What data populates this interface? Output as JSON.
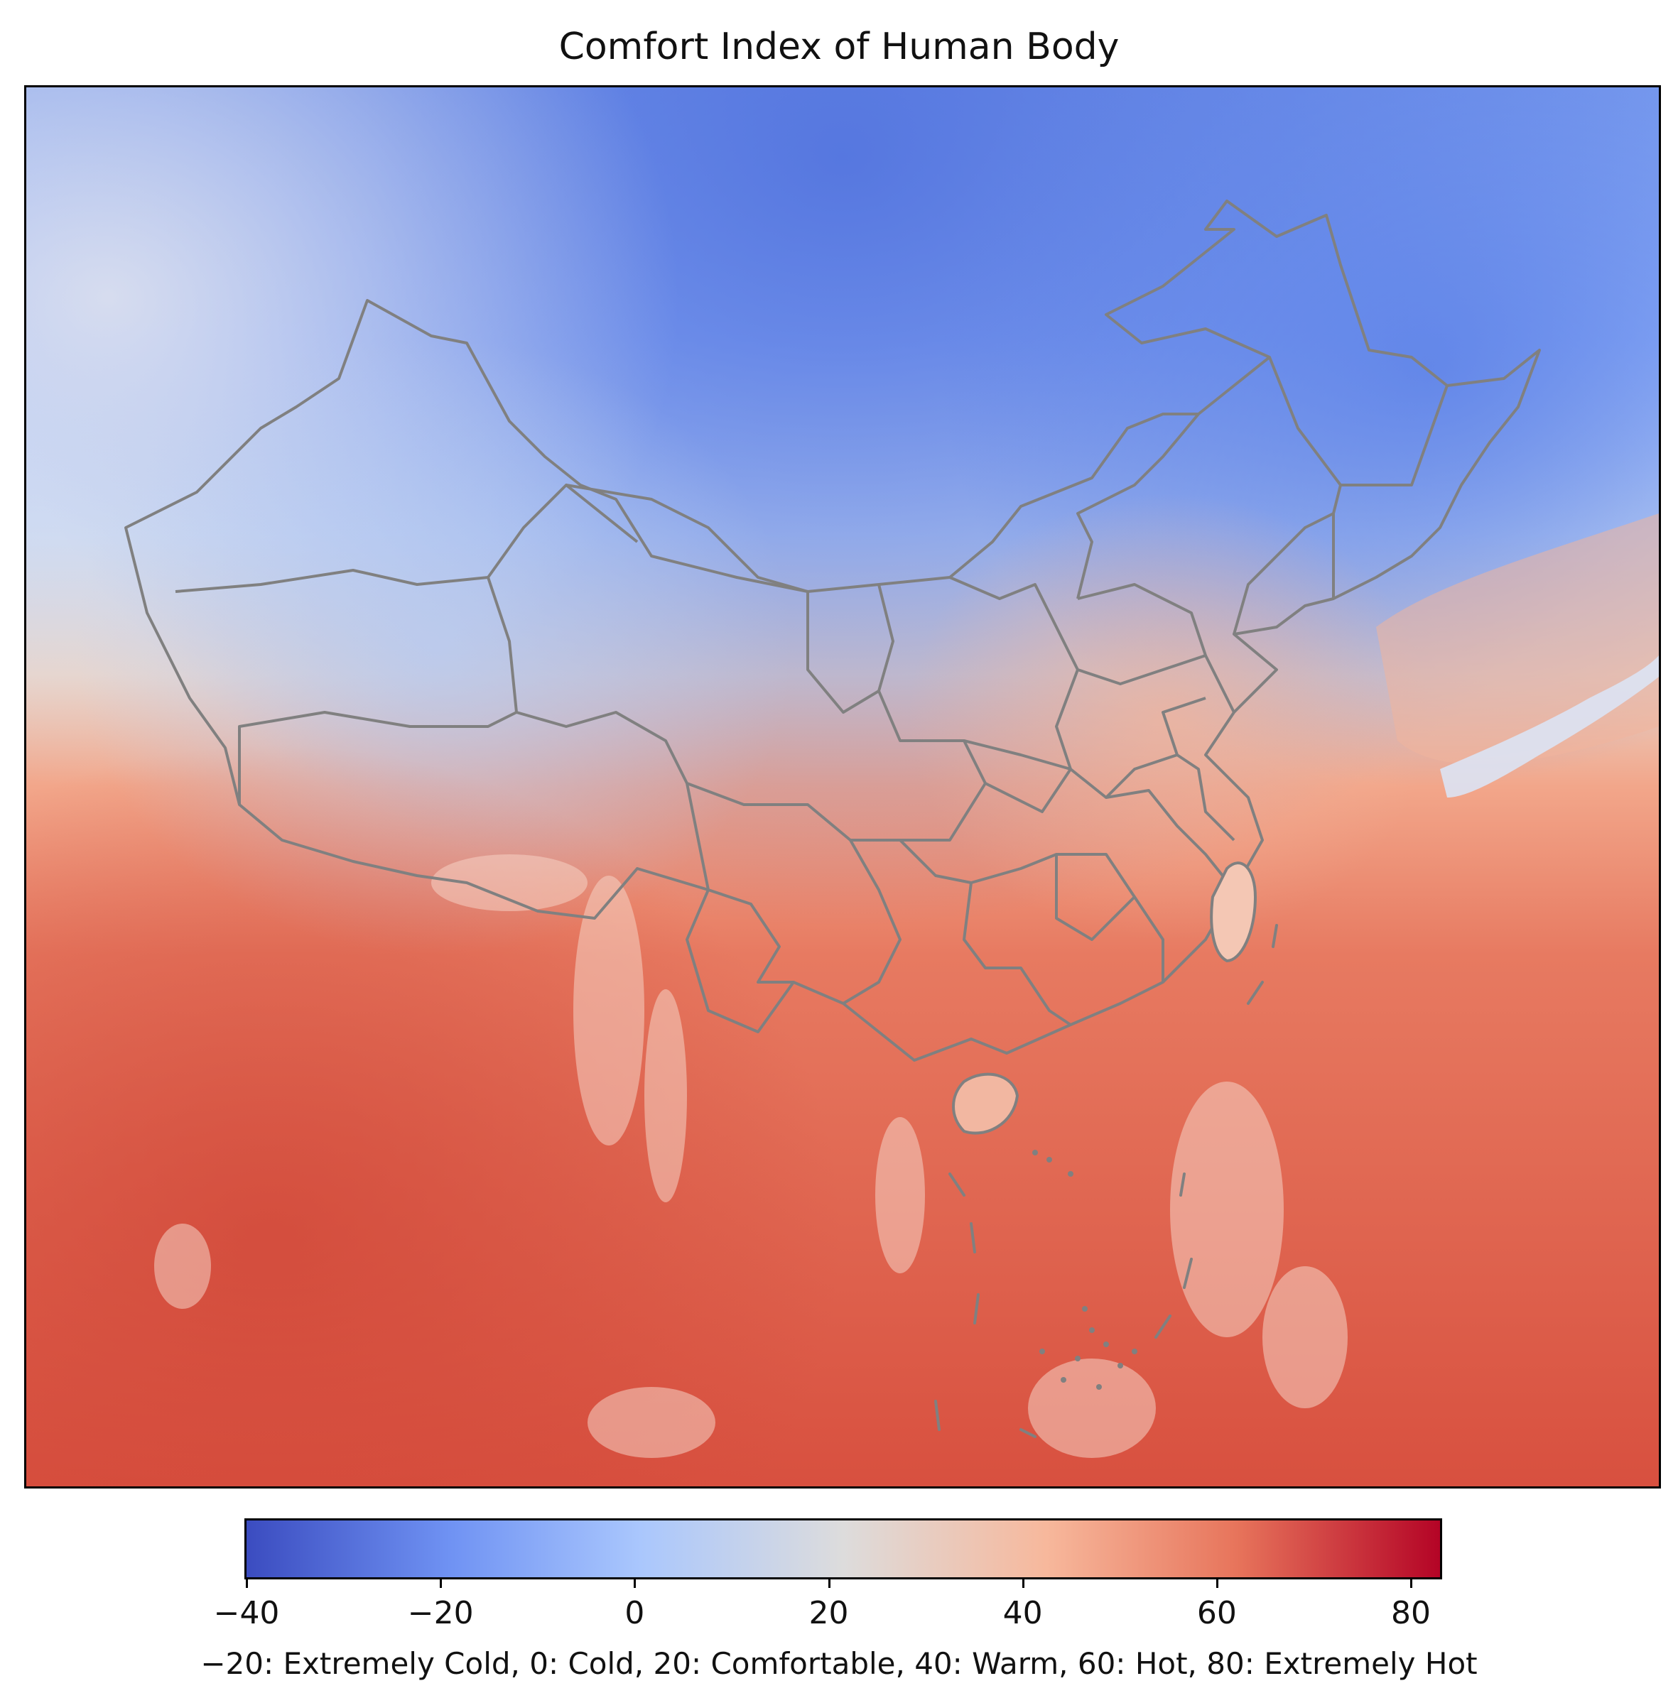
{
  "title": "Comfort Index of Human Body",
  "colorbar": {
    "ticks": [
      "−40",
      "−20",
      "0",
      "20",
      "40",
      "60",
      "80"
    ],
    "caption": "−20: Extremely Cold, 0: Cold, 20: Comfortable, 40: Warm, 60: Hot, 80: Extremely Hot",
    "range": [
      -40,
      83
    ],
    "colormap": "coolwarm",
    "stops": [
      "#3b4cc0",
      "#6f92f3",
      "#aac7fd",
      "#dddcdc",
      "#f7b89c",
      "#e7745b",
      "#b40426"
    ]
  },
  "map": {
    "region": "China and surrounding East / South / Southeast Asia",
    "boundary_color": "#808080",
    "gradient": "cold (blue) in north and west highlands, warm to hot (red) in south and over oceans"
  }
}
